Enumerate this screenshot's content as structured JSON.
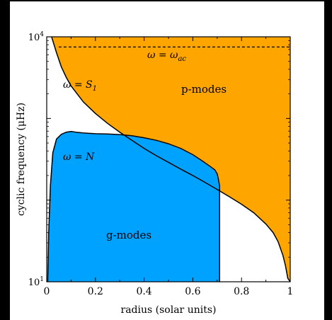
{
  "chart_data": {
    "type": "area",
    "xlabel": "radius (solar units)",
    "ylabel": "cyclic frequency (μHz)",
    "xlim": [
      0,
      1
    ],
    "ylim": [
      10,
      10000
    ],
    "yscale": "log",
    "xticks": [
      "0",
      "0.2",
      "0.4",
      "0.6",
      "0.8",
      "1"
    ],
    "xtick_values": [
      0,
      0.2,
      0.4,
      0.6,
      0.8,
      1.0
    ],
    "yticks": [
      {
        "base": "10",
        "exp": "1",
        "value": 10
      },
      {
        "base": "10",
        "exp": "4",
        "value": 10000
      }
    ],
    "annotations": {
      "cutoff": {
        "main": "ω = ω",
        "sub": "ac"
      },
      "lamb": {
        "main": "ω = S",
        "sub": "1"
      },
      "brunt": {
        "main": "ω = N",
        "sub": ""
      },
      "p_modes": "p-modes",
      "g_modes": "g-modes"
    },
    "series": [
      {
        "key": "lamb_S1",
        "x": [
          0.02,
          0.04,
          0.06,
          0.08,
          0.1,
          0.15,
          0.2,
          0.25,
          0.3,
          0.35,
          0.4,
          0.45,
          0.5,
          0.55,
          0.6,
          0.65,
          0.7,
          0.75,
          0.8,
          0.85,
          0.9,
          0.93,
          0.95,
          0.97,
          0.98,
          0.99
        ],
        "y": [
          10000,
          6400,
          4300,
          3200,
          2500,
          1600,
          1150,
          870,
          680,
          540,
          430,
          350,
          290,
          240,
          200,
          165,
          135,
          110,
          89,
          70,
          51,
          40,
          31,
          21,
          16,
          11
        ]
      },
      {
        "key": "brunt_N",
        "x": [
          0.004,
          0.008,
          0.015,
          0.025,
          0.04,
          0.06,
          0.08,
          0.1,
          0.12,
          0.15,
          0.2,
          0.25,
          0.3,
          0.35,
          0.4,
          0.45,
          0.5,
          0.55,
          0.6,
          0.64,
          0.67,
          0.69,
          0.7,
          0.705,
          0.71
        ],
        "y": [
          10,
          40,
          150,
          380,
          560,
          640,
          680,
          695,
          680,
          665,
          650,
          645,
          635,
          615,
          580,
          540,
          490,
          430,
          360,
          300,
          260,
          235,
          210,
          180,
          150
        ]
      },
      {
        "key": "acoustic_cutoff",
        "y_const": 7500
      }
    ],
    "colors": {
      "p_modes": "#ffa500",
      "g_modes": "#00a2ff",
      "plot_bg": "#ffffff",
      "line": "#000000",
      "frame": "#000000"
    },
    "grid": false,
    "legend": "none"
  }
}
